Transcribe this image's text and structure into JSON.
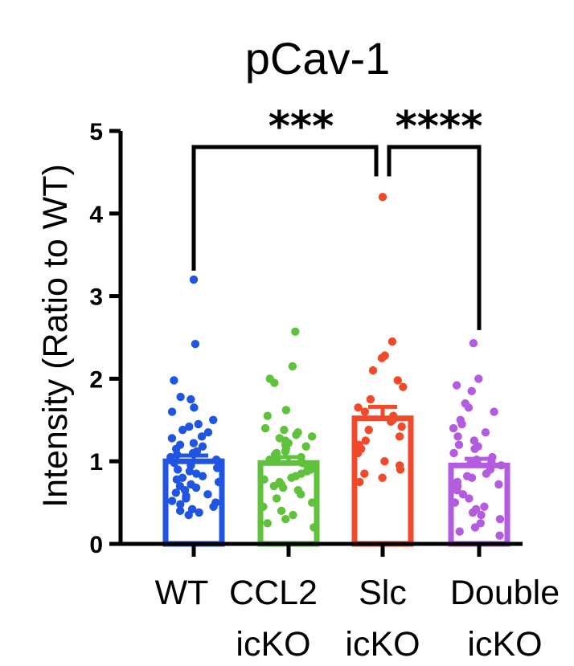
{
  "chart_data": {
    "type": "bar",
    "title": "pCav-1",
    "xlabel": "",
    "ylabel": "Intensity (Ratio to WT)",
    "ylim": [
      0,
      5
    ],
    "yticks": [
      "0",
      "1",
      "2",
      "3",
      "4",
      "5"
    ],
    "grid": false,
    "legend": "none",
    "categories": [
      {
        "line1": "WT",
        "line2": ""
      },
      {
        "line1": "CCL2",
        "line2": "icKO"
      },
      {
        "line1": "Slc",
        "line2": "icKO"
      },
      {
        "line1": "Double",
        "line2": "icKO"
      }
    ],
    "series": [
      {
        "color": "#1f55e0",
        "mean": 1.0,
        "sem": 0.07,
        "points": [
          3.2,
          2.42,
          1.98,
          1.78,
          1.75,
          1.65,
          1.6,
          1.5,
          1.45,
          1.42,
          1.38,
          1.35,
          1.3,
          1.28,
          1.22,
          1.2,
          1.18,
          1.15,
          1.12,
          1.1,
          1.08,
          1.05,
          1.02,
          1.0,
          0.98,
          0.95,
          0.92,
          0.9,
          0.88,
          0.85,
          0.82,
          0.8,
          0.78,
          0.75,
          0.72,
          0.7,
          0.68,
          0.65,
          0.62,
          0.6,
          0.58,
          0.55,
          0.52,
          0.5,
          0.48,
          0.45,
          0.42,
          0.4,
          0.38,
          0.35
        ]
      },
      {
        "color": "#5fc23b",
        "mean": 0.98,
        "sem": 0.07,
        "points": [
          2.57,
          2.15,
          2.0,
          1.95,
          1.62,
          1.55,
          1.4,
          1.38,
          1.35,
          1.32,
          1.3,
          1.28,
          1.25,
          1.22,
          1.2,
          1.18,
          1.15,
          1.12,
          1.1,
          1.08,
          1.05,
          1.02,
          1.0,
          0.98,
          0.95,
          0.92,
          0.9,
          0.88,
          0.85,
          0.82,
          0.8,
          0.78,
          0.75,
          0.72,
          0.7,
          0.68,
          0.65,
          0.6,
          0.55,
          0.5,
          0.45,
          0.4,
          0.35,
          0.3,
          0.25,
          0.2
        ]
      },
      {
        "color": "#f04a2a",
        "mean": 1.52,
        "sem": 0.14,
        "points": [
          4.2,
          2.45,
          2.28,
          2.25,
          2.1,
          1.98,
          1.9,
          1.75,
          1.65,
          1.6,
          1.55,
          1.5,
          1.48,
          1.42,
          1.38,
          1.3,
          1.25,
          1.2,
          1.15,
          1.1,
          1.0,
          0.95,
          0.9,
          0.85,
          0.8,
          0.75
        ]
      },
      {
        "color": "#b35ce0",
        "mean": 0.95,
        "sem": 0.08,
        "points": [
          2.43,
          2.0,
          1.92,
          1.85,
          1.7,
          1.65,
          1.6,
          1.5,
          1.45,
          1.4,
          1.35,
          1.3,
          1.25,
          1.2,
          1.18,
          1.15,
          1.1,
          1.05,
          1.02,
          1.0,
          0.98,
          0.95,
          0.9,
          0.85,
          0.82,
          0.8,
          0.75,
          0.72,
          0.7,
          0.65,
          0.6,
          0.55,
          0.5,
          0.45,
          0.42,
          0.38,
          0.35,
          0.3,
          0.25,
          0.2,
          0.15,
          0.1
        ]
      }
    ],
    "significance": [
      {
        "from": 0,
        "to": 2,
        "label": "***"
      },
      {
        "from": 2,
        "to": 3,
        "label": "****"
      }
    ]
  }
}
